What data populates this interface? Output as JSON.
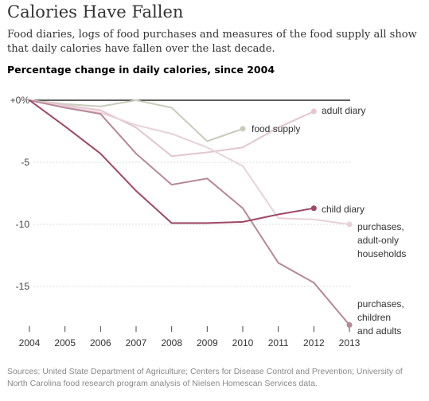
{
  "title": "Calories Have Fallen",
  "subtitle": "Food diaries, logs of food purchases and measures of the food supply all show that daily calories have fallen over the last decade.",
  "source": "Sources: United State Department of Agriculture; Centers for Disease Control and Prevention; University of North Carolina food research program analysis of Nielsen Homescan Services data.",
  "chart_data": {
    "type": "line",
    "title": "Calories Have Fallen",
    "ylabel": "Percentage change in daily calories, since 2004",
    "xlabel": "",
    "x": [
      2004,
      2005,
      2006,
      2007,
      2008,
      2009,
      2010,
      2011,
      2012,
      2013
    ],
    "xticks": [
      "2004",
      "2005",
      "2006",
      "2007",
      "2008",
      "2009",
      "2010",
      "2011",
      "2012",
      "2013"
    ],
    "ylim": [
      -19,
      0
    ],
    "yticks": [
      {
        "value": 0,
        "label": "+0%"
      },
      {
        "value": -5,
        "label": "-5"
      },
      {
        "value": -10,
        "label": "-10"
      },
      {
        "value": -15,
        "label": "-15"
      }
    ],
    "zero_line": true,
    "series": [
      {
        "name": "food supply",
        "color": "#c8ccba",
        "x": [
          2004,
          2005,
          2006,
          2007,
          2008,
          2009,
          2010
        ],
        "values": [
          0,
          -0.3,
          -0.5,
          0,
          -0.6,
          -3.3,
          -2.3
        ],
        "endpoint": true,
        "label": [
          "food supply"
        ]
      },
      {
        "name": "adult diary",
        "color": "#e3c6cf",
        "x": [
          2004,
          2005,
          2006,
          2007,
          2008,
          2009,
          2010,
          2011,
          2012
        ],
        "values": [
          0,
          -0.4,
          -0.8,
          -2.2,
          -4.5,
          -4.2,
          -3.8,
          -2.2,
          -0.9
        ],
        "endpoint": true,
        "label": [
          "adult diary"
        ]
      },
      {
        "name": "purchases, adult-only households",
        "color": "#e8d2d8",
        "x": [
          2004,
          2005,
          2006,
          2007,
          2008,
          2009,
          2010,
          2011,
          2012,
          2013
        ],
        "values": [
          0,
          -0.5,
          -1.0,
          -2.0,
          -2.7,
          -3.8,
          -5.3,
          -9.5,
          -9.6,
          -10.0
        ],
        "endpoint": true,
        "label": [
          "purchases,",
          "adult-only",
          "households"
        ]
      },
      {
        "name": "purchases, children and adults",
        "color": "#b7889a",
        "x": [
          2004,
          2005,
          2006,
          2007,
          2008,
          2009,
          2010,
          2011,
          2012,
          2013
        ],
        "values": [
          0,
          -0.6,
          -1.1,
          -4.3,
          -6.8,
          -6.3,
          -8.7,
          -13.1,
          -14.7,
          -18.1
        ],
        "endpoint": true,
        "label": [
          "purchases,",
          "children",
          "and adults"
        ]
      },
      {
        "name": "child diary",
        "color": "#a04767",
        "x": [
          2004,
          2005,
          2006,
          2007,
          2008,
          2009,
          2010,
          2011,
          2012
        ],
        "values": [
          0,
          -2.1,
          -4.3,
          -7.3,
          -9.9,
          -9.9,
          -9.8,
          -9.2,
          -8.7
        ],
        "endpoint": true,
        "label": [
          "child diary"
        ]
      }
    ]
  }
}
